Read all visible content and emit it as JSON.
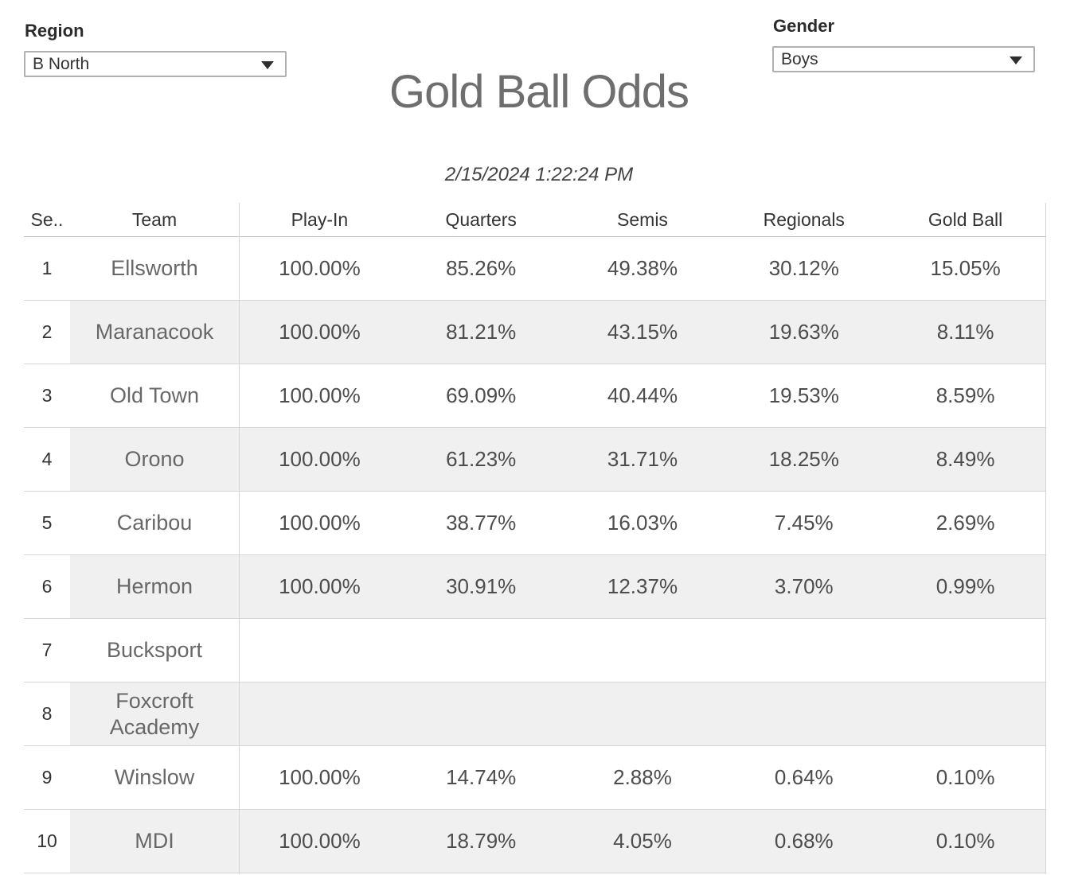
{
  "filters": {
    "region": {
      "label": "Region",
      "value": "B North"
    },
    "gender": {
      "label": "Gender",
      "value": "Boys"
    }
  },
  "title": "Gold Ball Odds",
  "timestamp": "2/15/2024 1:22:24 PM",
  "table": {
    "columns": {
      "seed": "Se..",
      "team": "Team",
      "playin": "Play-In",
      "quarters": "Quarters",
      "semis": "Semis",
      "regionals": "Regionals",
      "goldball": "Gold Ball"
    },
    "rows": [
      {
        "seed": "1",
        "team": "Ellsworth",
        "playin": "100.00%",
        "quarters": "85.26%",
        "semis": "49.38%",
        "regionals": "30.12%",
        "goldball": "15.05%"
      },
      {
        "seed": "2",
        "team": "Maranacook",
        "playin": "100.00%",
        "quarters": "81.21%",
        "semis": "43.15%",
        "regionals": "19.63%",
        "goldball": "8.11%"
      },
      {
        "seed": "3",
        "team": "Old Town",
        "playin": "100.00%",
        "quarters": "69.09%",
        "semis": "40.44%",
        "regionals": "19.53%",
        "goldball": "8.59%"
      },
      {
        "seed": "4",
        "team": "Orono",
        "playin": "100.00%",
        "quarters": "61.23%",
        "semis": "31.71%",
        "regionals": "18.25%",
        "goldball": "8.49%"
      },
      {
        "seed": "5",
        "team": "Caribou",
        "playin": "100.00%",
        "quarters": "38.77%",
        "semis": "16.03%",
        "regionals": "7.45%",
        "goldball": "2.69%"
      },
      {
        "seed": "6",
        "team": "Hermon",
        "playin": "100.00%",
        "quarters": "30.91%",
        "semis": "12.37%",
        "regionals": "3.70%",
        "goldball": "0.99%"
      },
      {
        "seed": "7",
        "team": "Bucksport",
        "playin": "",
        "quarters": "",
        "semis": "",
        "regionals": "",
        "goldball": ""
      },
      {
        "seed": "8",
        "team": "Foxcroft Academy",
        "playin": "",
        "quarters": "",
        "semis": "",
        "regionals": "",
        "goldball": ""
      },
      {
        "seed": "9",
        "team": "Winslow",
        "playin": "100.00%",
        "quarters": "14.74%",
        "semis": "2.88%",
        "regionals": "0.64%",
        "goldball": "0.10%"
      },
      {
        "seed": "10",
        "team": "MDI",
        "playin": "100.00%",
        "quarters": "18.79%",
        "semis": "4.05%",
        "regionals": "0.68%",
        "goldball": "0.10%"
      }
    ]
  },
  "chart_data": {
    "type": "table",
    "title": "Gold Ball Odds",
    "columns": [
      "Se..",
      "Team",
      "Play-In",
      "Quarters",
      "Semis",
      "Regionals",
      "Gold Ball"
    ],
    "rows": [
      [
        "1",
        "Ellsworth",
        "100.00%",
        "85.26%",
        "49.38%",
        "30.12%",
        "15.05%"
      ],
      [
        "2",
        "Maranacook",
        "100.00%",
        "81.21%",
        "43.15%",
        "19.63%",
        "8.11%"
      ],
      [
        "3",
        "Old Town",
        "100.00%",
        "69.09%",
        "40.44%",
        "19.53%",
        "8.59%"
      ],
      [
        "4",
        "Orono",
        "100.00%",
        "61.23%",
        "31.71%",
        "18.25%",
        "8.49%"
      ],
      [
        "5",
        "Caribou",
        "100.00%",
        "38.77%",
        "16.03%",
        "7.45%",
        "2.69%"
      ],
      [
        "6",
        "Hermon",
        "100.00%",
        "30.91%",
        "12.37%",
        "3.70%",
        "0.99%"
      ],
      [
        "7",
        "Bucksport",
        "",
        "",
        "",
        "",
        ""
      ],
      [
        "8",
        "Foxcroft Academy",
        "",
        "",
        "",
        "",
        ""
      ],
      [
        "9",
        "Winslow",
        "100.00%",
        "14.74%",
        "2.88%",
        "0.64%",
        "0.10%"
      ],
      [
        "10",
        "MDI",
        "100.00%",
        "18.79%",
        "4.05%",
        "0.68%",
        "0.10%"
      ]
    ]
  },
  "colors": {
    "band": "#f0f0f0",
    "border": "#d6d6d6",
    "title_text": "#6e6e6e"
  }
}
